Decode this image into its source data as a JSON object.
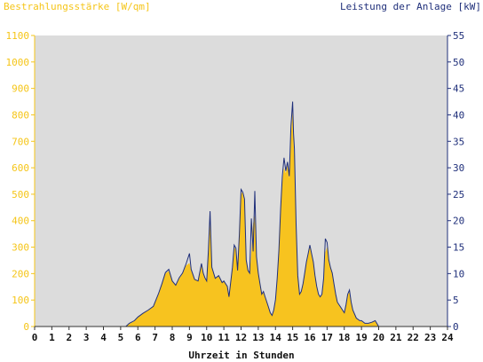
{
  "colors": {
    "irradiance": "#f7c31f",
    "power": "#1f2f7a",
    "plot_background": "#dcdcdc",
    "left_axis": "#f5c518",
    "right_axis": "#1f2f7a"
  },
  "chart_data": {
    "type": "area",
    "title": "",
    "ylabel_left": "Bestrahlungsstärke [W/qm]",
    "ylabel_right": "Leistung der Anlage [kW]",
    "xlabel": "Uhrzeit in Stunden",
    "xlim": [
      0,
      24
    ],
    "ylim_left": [
      0,
      1100
    ],
    "ylim_right": [
      0,
      55
    ],
    "x_ticks": [
      "0",
      "1",
      "2",
      "3",
      "4",
      "5",
      "6",
      "7",
      "8",
      "9",
      "10",
      "11",
      "12",
      "13",
      "14",
      "15",
      "16",
      "17",
      "18",
      "19",
      "20",
      "21",
      "22",
      "23",
      "24"
    ],
    "y_ticks_left": [
      "0",
      "100",
      "200",
      "300",
      "400",
      "500",
      "600",
      "700",
      "800",
      "900",
      "1000",
      "1100"
    ],
    "y_ticks_right": [
      "0",
      "5",
      "10",
      "15",
      "20",
      "25",
      "30",
      "35",
      "40",
      "45",
      "50",
      "55"
    ],
    "grid": false,
    "series": [
      {
        "name": "Bestrahlungsstärke [W/qm]",
        "axis": "left",
        "style": "filled-area",
        "x": [
          0,
          5.3,
          5.5,
          5.8,
          6.0,
          6.3,
          6.6,
          6.9,
          7.2,
          7.4,
          7.6,
          7.8,
          8.0,
          8.2,
          8.4,
          8.6,
          8.8,
          9.0,
          9.1,
          9.3,
          9.5,
          9.7,
          9.8,
          9.9,
          10.0,
          10.1,
          10.2,
          10.3,
          10.5,
          10.7,
          10.9,
          11.0,
          11.2,
          11.3,
          11.5,
          11.6,
          11.7,
          11.8,
          11.9,
          12.0,
          12.1,
          12.2,
          12.3,
          12.4,
          12.5,
          12.6,
          12.7,
          12.8,
          12.9,
          13.0,
          13.1,
          13.2,
          13.3,
          13.4,
          13.5,
          13.6,
          13.7,
          13.8,
          13.9,
          14.0,
          14.1,
          14.2,
          14.3,
          14.4,
          14.5,
          14.6,
          14.7,
          14.8,
          14.9,
          15.0,
          15.05,
          15.1,
          15.2,
          15.3,
          15.4,
          15.5,
          15.6,
          15.7,
          15.8,
          15.9,
          16.0,
          16.1,
          16.2,
          16.3,
          16.4,
          16.5,
          16.6,
          16.7,
          16.8,
          16.9,
          17.0,
          17.1,
          17.2,
          17.3,
          17.4,
          17.5,
          17.6,
          17.7,
          17.8,
          17.9,
          18.0,
          18.1,
          18.2,
          18.3,
          18.4,
          18.5,
          18.7,
          18.9,
          19.0,
          19.2,
          19.4,
          19.6,
          19.8,
          20.0,
          20.2,
          24
        ],
        "y": [
          0,
          0,
          10,
          20,
          35,
          50,
          60,
          75,
          120,
          160,
          200,
          210,
          170,
          155,
          180,
          200,
          230,
          240,
          210,
          180,
          170,
          230,
          200,
          180,
          170,
          280,
          410,
          220,
          180,
          190,
          165,
          170,
          150,
          110,
          220,
          300,
          290,
          210,
          340,
          500,
          510,
          470,
          250,
          210,
          200,
          280,
          390,
          420,
          260,
          200,
          160,
          120,
          130,
          110,
          90,
          70,
          50,
          40,
          60,
          100,
          180,
          280,
          430,
          550,
          600,
          580,
          610,
          560,
          720,
          820,
          700,
          640,
          380,
          190,
          120,
          130,
          160,
          200,
          240,
          270,
          300,
          270,
          240,
          190,
          150,
          120,
          110,
          120,
          180,
          280,
          300,
          250,
          220,
          200,
          160,
          120,
          90,
          80,
          70,
          60,
          50,
          80,
          120,
          130,
          90,
          60,
          30,
          20,
          20,
          10,
          10,
          15,
          20,
          0,
          0,
          0
        ]
      },
      {
        "name": "Leistung der Anlage [kW]",
        "axis": "right",
        "style": "line",
        "x": [
          0,
          5.3,
          5.5,
          5.8,
          6.0,
          6.3,
          6.6,
          6.9,
          7.2,
          7.4,
          7.6,
          7.8,
          8.0,
          8.2,
          8.4,
          8.6,
          8.8,
          9.0,
          9.1,
          9.3,
          9.5,
          9.7,
          9.8,
          9.9,
          10.0,
          10.1,
          10.2,
          10.3,
          10.5,
          10.7,
          10.9,
          11.0,
          11.2,
          11.3,
          11.5,
          11.6,
          11.7,
          11.8,
          11.9,
          12.0,
          12.1,
          12.2,
          12.3,
          12.4,
          12.5,
          12.6,
          12.7,
          12.8,
          12.9,
          13.0,
          13.1,
          13.2,
          13.3,
          13.4,
          13.5,
          13.6,
          13.7,
          13.8,
          13.9,
          14.0,
          14.1,
          14.2,
          14.3,
          14.4,
          14.5,
          14.6,
          14.7,
          14.8,
          14.9,
          15.0,
          15.05,
          15.1,
          15.2,
          15.3,
          15.4,
          15.5,
          15.6,
          15.7,
          15.8,
          15.9,
          16.0,
          16.1,
          16.2,
          16.3,
          16.4,
          16.5,
          16.6,
          16.7,
          16.8,
          16.9,
          17.0,
          17.1,
          17.2,
          17.3,
          17.4,
          17.5,
          17.6,
          17.7,
          17.8,
          17.9,
          18.0,
          18.1,
          18.2,
          18.3,
          18.4,
          18.5,
          18.7,
          18.9,
          19.0,
          19.2,
          19.4,
          19.6,
          19.8,
          20.0,
          20.2,
          24
        ],
        "y": [
          0,
          0,
          0.6,
          1.1,
          1.8,
          2.5,
          3.1,
          3.8,
          6.2,
          8.1,
          10.2,
          10.8,
          8.6,
          7.8,
          9.2,
          10.1,
          11.8,
          13.8,
          10.8,
          8.9,
          8.6,
          11.9,
          10.1,
          9.2,
          8.6,
          14.3,
          21.8,
          11.2,
          9.1,
          9.6,
          8.3,
          8.6,
          7.6,
          5.6,
          11.2,
          15.4,
          14.8,
          10.6,
          17.4,
          25.9,
          25.4,
          24.1,
          12.6,
          10.6,
          10.1,
          20.4,
          14.2,
          25.6,
          13.2,
          10.1,
          8.1,
          6.1,
          6.6,
          5.6,
          4.6,
          3.6,
          2.6,
          2.1,
          3.1,
          5.1,
          9.1,
          14.3,
          22.3,
          28.4,
          31.9,
          29.4,
          31.1,
          28.4,
          37.9,
          42.5,
          36.5,
          33.6,
          19.3,
          9.6,
          6.1,
          6.6,
          8.1,
          10.1,
          12.2,
          13.8,
          15.4,
          13.8,
          12.2,
          9.6,
          7.6,
          6.1,
          5.6,
          6.1,
          9.1,
          16.6,
          15.9,
          12.6,
          11.1,
          10.1,
          8.1,
          6.1,
          4.6,
          4.1,
          3.6,
          3.1,
          2.6,
          4.1,
          6.1,
          6.9,
          4.6,
          3.1,
          1.6,
          1.1,
          1.1,
          0.6,
          0.6,
          0.8,
          1.1,
          0,
          0,
          0
        ]
      }
    ]
  }
}
